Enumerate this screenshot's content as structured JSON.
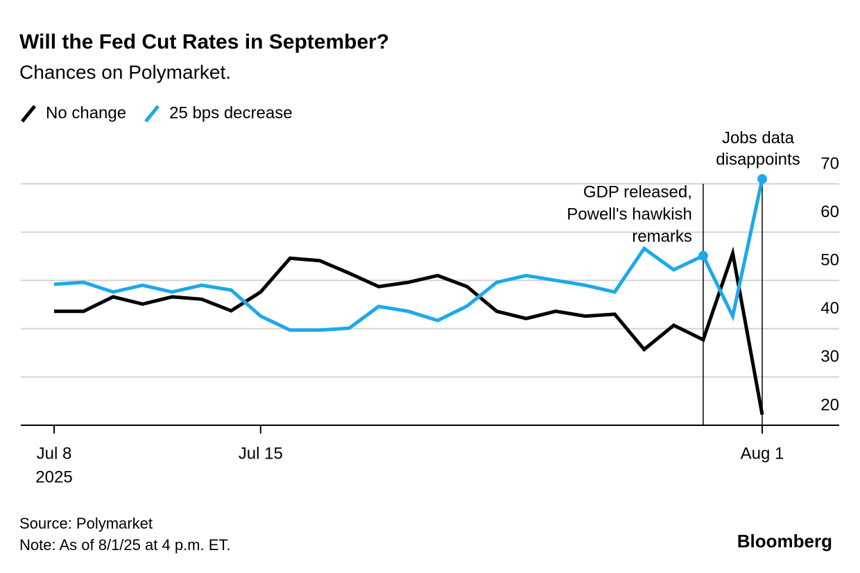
{
  "chart_data": {
    "type": "line",
    "title": "Will the Fed Cut Rates in September?",
    "subtitle": "Chances on Polymarket.",
    "categories": [
      "Jul 8",
      null,
      null,
      null,
      null,
      null,
      null,
      "Jul 15",
      null,
      null,
      null,
      null,
      null,
      null,
      null,
      null,
      null,
      null,
      null,
      null,
      null,
      null,
      null,
      null,
      "Aug 1"
    ],
    "x_sublabel": "2025",
    "series": [
      {
        "name": "No change",
        "color": "#000000",
        "values": [
          43.6,
          43.6,
          46.6,
          45.1,
          46.6,
          46.1,
          43.7,
          47.6,
          54.6,
          54.1,
          51.5,
          48.7,
          49.6,
          51.0,
          48.7,
          43.6,
          42.1,
          43.6,
          42.6,
          43.0,
          35.7,
          40.7,
          37.7,
          55.6,
          22.2
        ]
      },
      {
        "name": "25 bps decrease",
        "color": "#1da8ec",
        "values": [
          49.2,
          49.6,
          47.6,
          49.0,
          47.6,
          49.0,
          48.0,
          42.6,
          39.7,
          39.7,
          40.1,
          44.6,
          43.6,
          41.7,
          44.7,
          49.6,
          51.0,
          50.0,
          49.0,
          47.6,
          56.6,
          52.2,
          55.1,
          42.6,
          71.0
        ]
      }
    ],
    "ylim": [
      20,
      70
    ],
    "yticks": [
      20,
      30,
      40,
      50,
      60,
      70
    ],
    "grid": true,
    "legend": "top-left",
    "annotations": [
      {
        "x_index": 22,
        "text": [
          "GDP released,",
          "Powell's hawkish",
          "remarks"
        ]
      },
      {
        "x_index": 24,
        "text": [
          "Jobs data",
          "disappoints"
        ]
      }
    ],
    "source": "Source: Polymarket",
    "note": "Note: As of 8/1/25 at 4 p.m. ET.",
    "brand": "Bloomberg"
  }
}
